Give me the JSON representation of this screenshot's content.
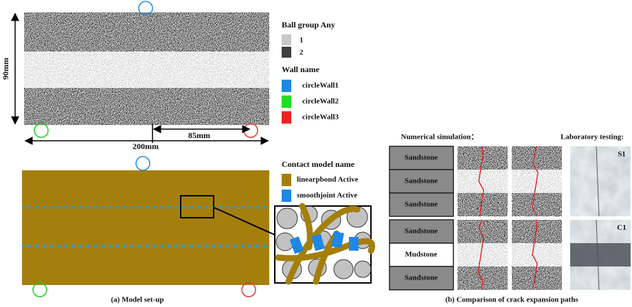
{
  "panel_a": {
    "dimensions": {
      "height": "90mm",
      "width": "200mm",
      "span": "85mm"
    },
    "ball_legend": {
      "title": "Ball group Any",
      "items": [
        "1",
        "2"
      ]
    },
    "wall_legend": {
      "title": "Wall name",
      "items": [
        "circleWall1",
        "circleWall2",
        "circleWall3"
      ]
    },
    "contact_legend": {
      "title": "Contact model name",
      "items": [
        "linearpbond Active",
        "smoothjoint Active"
      ]
    },
    "caption": "(a) Model set-up"
  },
  "panel_b": {
    "headers": {
      "simulation": "Numerical simulation：",
      "laboratory": "Laboratory testing:"
    },
    "groups": [
      {
        "layers": [
          "Sandstone",
          "Sandstone",
          "Sandstone"
        ],
        "specimen": "S1"
      },
      {
        "layers": [
          "Sandstone",
          "Mudstone",
          "Sandstone"
        ],
        "specimen": "C1"
      }
    ],
    "caption": "(b) Comparison of crack expansion paths"
  }
}
